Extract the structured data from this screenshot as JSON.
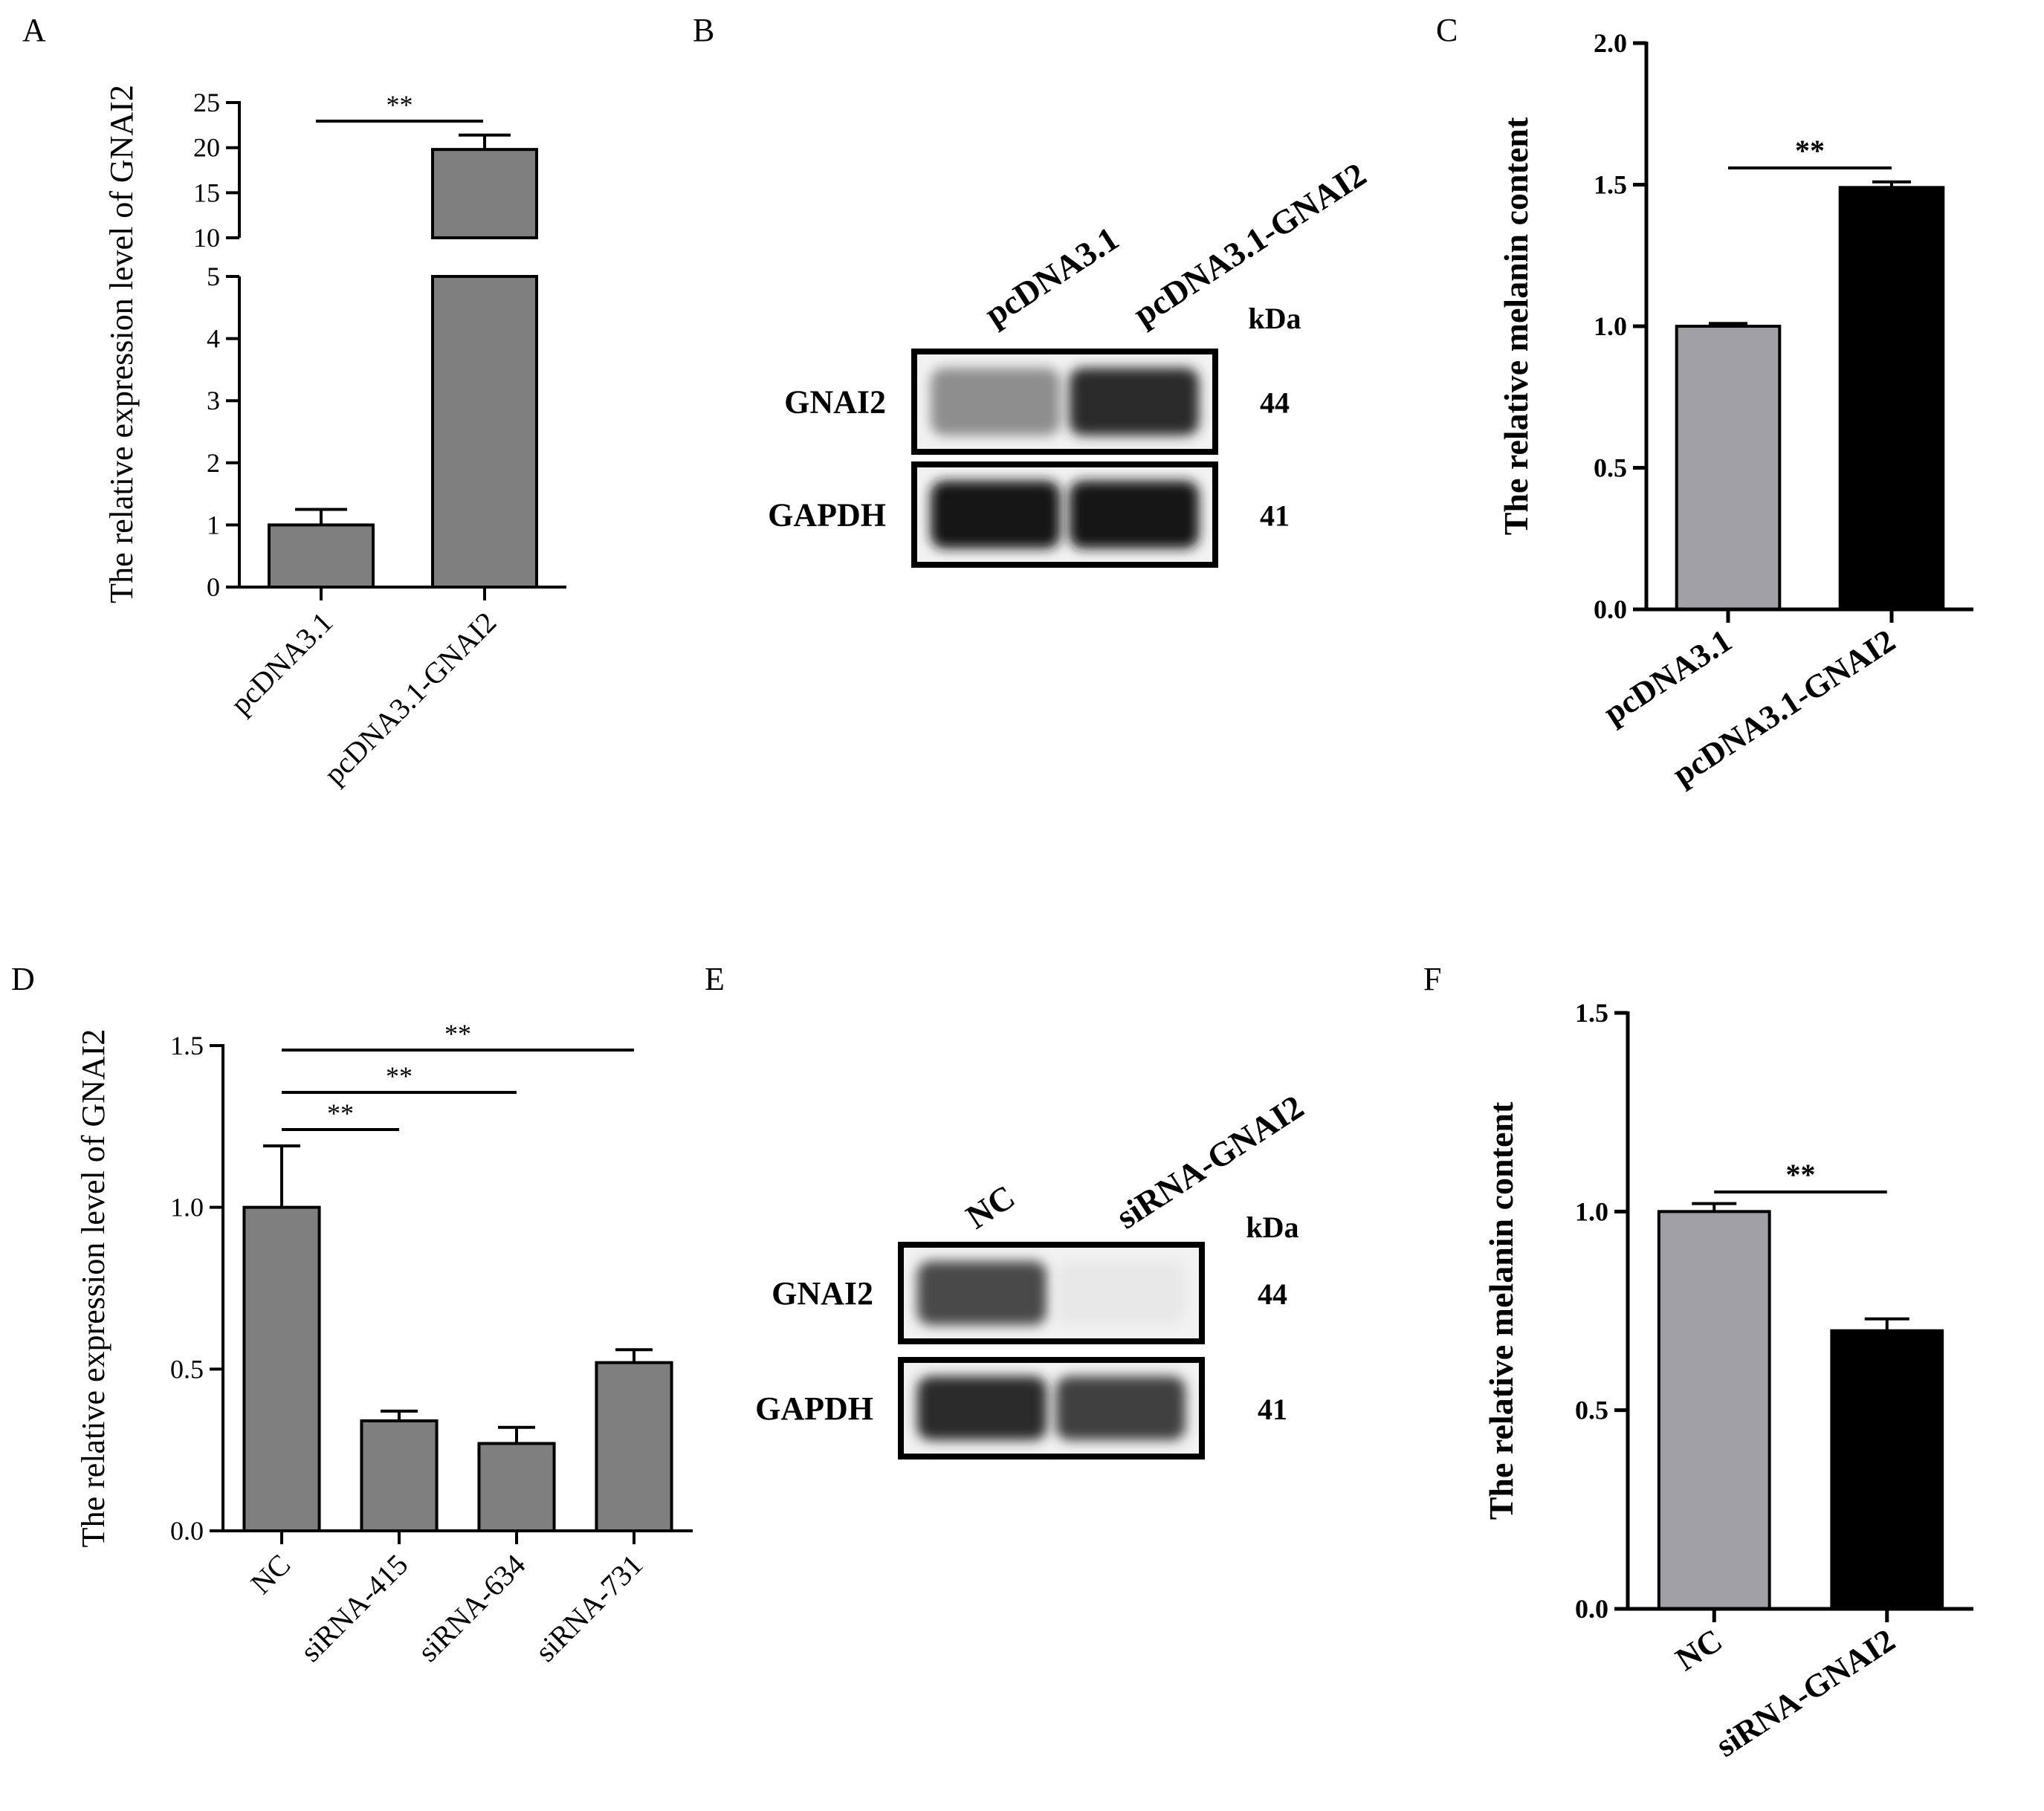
{
  "chart_data": [
    {
      "panel": "A",
      "type": "bar",
      "categories": [
        "pcDNA3.1",
        "pcDNA3.1-GNAI2"
      ],
      "values": [
        1.0,
        19.8
      ],
      "errors": [
        0.25,
        1.6
      ],
      "ylabel": "The relative expression level of GNAI2",
      "axis_break": [
        5,
        10
      ],
      "yticks_lower": [
        "0",
        "1",
        "2",
        "3",
        "4",
        "5"
      ],
      "yticks_upper": [
        "10",
        "15",
        "20",
        "25"
      ],
      "significance": [
        {
          "from": 0,
          "to": 1,
          "label": "**"
        }
      ],
      "colors": {
        "bar": "#7f7f7f"
      }
    },
    {
      "panel": "B",
      "type": "western_blot",
      "lanes": [
        "pcDNA3.1",
        "pcDNA3.1-GNAI2"
      ],
      "proteins": [
        {
          "name": "GNAI2",
          "kda": "44",
          "intensity": [
            0.45,
            0.9
          ]
        },
        {
          "name": "GAPDH",
          "kda": "41",
          "intensity": [
            1.0,
            1.0
          ]
        }
      ],
      "kda_label": "kDa"
    },
    {
      "panel": "C",
      "type": "bar",
      "categories": [
        "pcDNA3.1",
        "pcDNA3.1-GNAI2"
      ],
      "values": [
        1.0,
        1.49
      ],
      "errors": [
        0.01,
        0.02
      ],
      "ylabel": "The relative melanin content",
      "ylim": [
        0,
        2.0
      ],
      "yticks": [
        "0.0",
        "0.5",
        "1.0",
        "1.5",
        "2.0"
      ],
      "significance": [
        {
          "from": 0,
          "to": 1,
          "label": "**"
        }
      ],
      "colors": {
        "bars": [
          "#a0a0a6",
          "#000000"
        ]
      }
    },
    {
      "panel": "D",
      "type": "bar",
      "categories": [
        "NC",
        "siRNA-415",
        "siRNA-634",
        "siRNA-731"
      ],
      "values": [
        1.0,
        0.34,
        0.27,
        0.52
      ],
      "errors": [
        0.19,
        0.03,
        0.05,
        0.04
      ],
      "ylabel": "The relative expression level of GNAI2",
      "ylim": [
        0,
        1.5
      ],
      "yticks": [
        "0.0",
        "0.5",
        "1.0",
        "1.5"
      ],
      "significance": [
        {
          "from": 0,
          "to": 1,
          "label": "**"
        },
        {
          "from": 0,
          "to": 2,
          "label": "**"
        },
        {
          "from": 0,
          "to": 3,
          "label": "**"
        }
      ],
      "colors": {
        "bar": "#7f7f7f"
      }
    },
    {
      "panel": "E",
      "type": "western_blot",
      "lanes": [
        "NC",
        "siRNA-GNAI2"
      ],
      "proteins": [
        {
          "name": "GNAI2",
          "kda": "44",
          "intensity": [
            0.75,
            0.05
          ]
        },
        {
          "name": "GAPDH",
          "kda": "41",
          "intensity": [
            0.9,
            0.8
          ]
        }
      ],
      "kda_label": "kDa"
    },
    {
      "panel": "F",
      "type": "bar",
      "categories": [
        "NC",
        "siRNA-GNAI2"
      ],
      "values": [
        1.0,
        0.7
      ],
      "errors": [
        0.02,
        0.03
      ],
      "ylabel": "The relative melanin content",
      "ylim": [
        0,
        1.5
      ],
      "yticks": [
        "0.0",
        "0.5",
        "1.0",
        "1.5"
      ],
      "significance": [
        {
          "from": 0,
          "to": 1,
          "label": "**"
        }
      ],
      "colors": {
        "bars": [
          "#a0a0a6",
          "#000000"
        ]
      }
    }
  ]
}
